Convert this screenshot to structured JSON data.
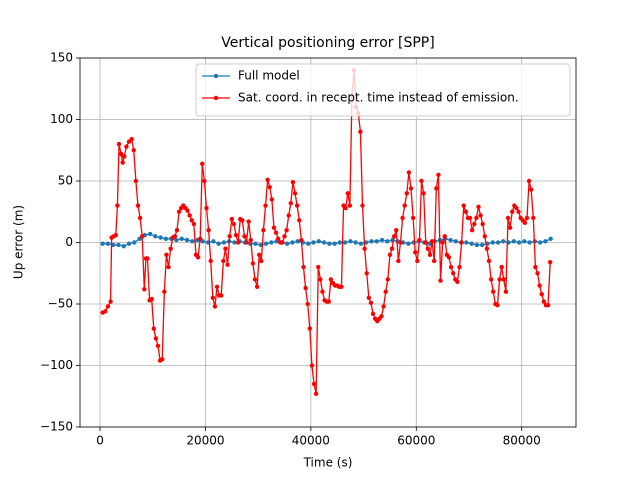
{
  "chart_data": {
    "type": "line",
    "title": "Vertical positioning error [SPP]",
    "x_label": "Time (s)",
    "y_label": "Up error (m)",
    "xlim": [
      -3800,
      90300
    ],
    "xticks": [
      0,
      20000,
      40000,
      60000,
      80000
    ],
    "ylim": [
      -150,
      150
    ],
    "yticks": [
      {
        "value": -150,
        "label": "−150"
      },
      {
        "value": -100,
        "label": "−100"
      },
      {
        "value": -50,
        "label": "−50"
      },
      0,
      50,
      100,
      150
    ],
    "grid": true,
    "legend": "upper-center",
    "series": [
      {
        "name": "Full model",
        "color": "#1f77b4",
        "x": [
          500,
          1500,
          2500,
          3500,
          4500,
          5500,
          6500,
          7500,
          8500,
          9500,
          10500,
          11500,
          12500,
          13500,
          14500,
          15500,
          16500,
          17500,
          18500,
          19500,
          20500,
          21500,
          22500,
          23500,
          24500,
          25500,
          26500,
          27500,
          28500,
          29500,
          30500,
          31500,
          32500,
          33500,
          34500,
          35500,
          36500,
          37500,
          38500,
          39500,
          40500,
          41500,
          42500,
          43500,
          44500,
          45500,
          46500,
          47500,
          48500,
          49500,
          50500,
          51500,
          52500,
          53500,
          54500,
          55500,
          56500,
          57500,
          58500,
          59500,
          60500,
          61500,
          62500,
          63500,
          64500,
          65500,
          66500,
          67500,
          68500,
          69500,
          70500,
          71500,
          72500,
          73500,
          74500,
          75500,
          76500,
          77500,
          78500,
          79500,
          80500,
          81500,
          82500,
          83500,
          84500,
          85500
        ],
        "values": [
          -1,
          -1,
          -2,
          -2,
          -3,
          -1,
          0,
          3,
          6,
          7,
          5,
          4,
          3,
          3,
          2,
          3,
          2,
          1,
          2,
          1,
          0,
          1,
          -1,
          0,
          1,
          0,
          1,
          0,
          -1,
          -1,
          -2,
          -1,
          0,
          1,
          0,
          -1,
          0,
          1,
          0,
          -1,
          0,
          1,
          0,
          -1,
          -1,
          0,
          0,
          1,
          0,
          -1,
          0,
          1,
          1,
          2,
          1,
          2,
          1,
          0,
          -1,
          0,
          1,
          0,
          -1,
          1,
          2,
          3,
          2,
          1,
          0,
          0,
          -1,
          -2,
          -2,
          -1,
          0,
          0,
          1,
          0,
          1,
          0,
          1,
          0,
          1,
          0,
          1,
          3
        ]
      },
      {
        "name": "Sat. coord. in recept. time instead of emission.",
        "color": "#ff0000",
        "x": [
          500,
          1000,
          1500,
          2000,
          2200,
          2600,
          3000,
          3300,
          3600,
          4000,
          4300,
          4600,
          5000,
          5500,
          6000,
          6400,
          6800,
          7200,
          7600,
          8000,
          8400,
          8700,
          9000,
          9400,
          9800,
          10200,
          10600,
          11000,
          11400,
          11800,
          12200,
          12600,
          13000,
          13400,
          13800,
          14200,
          14600,
          15000,
          15400,
          15800,
          16200,
          16600,
          17000,
          17400,
          17800,
          18200,
          18600,
          19000,
          19400,
          19800,
          20200,
          20600,
          21000,
          21400,
          21800,
          22200,
          22600,
          23000,
          23400,
          23800,
          24200,
          24600,
          25000,
          25400,
          25800,
          26200,
          26600,
          27000,
          27400,
          27800,
          28200,
          28600,
          29000,
          29400,
          29800,
          30200,
          30600,
          31000,
          31400,
          31800,
          32200,
          32600,
          33000,
          33400,
          33800,
          34200,
          34600,
          35000,
          35400,
          35800,
          36200,
          36600,
          37000,
          37400,
          37800,
          38200,
          38600,
          39000,
          39400,
          39800,
          40200,
          40600,
          41000,
          41400,
          41800,
          42200,
          42600,
          43000,
          43400,
          43800,
          44200,
          44600,
          45000,
          45400,
          45800,
          46200,
          46600,
          47000,
          47400,
          47800,
          48200,
          48600,
          49000,
          49400,
          49800,
          50200,
          50600,
          51000,
          51400,
          51800,
          52200,
          52600,
          53000,
          53400,
          53800,
          54200,
          54600,
          55000,
          55400,
          55800,
          56200,
          56600,
          57000,
          57400,
          57800,
          58200,
          58600,
          59000,
          59400,
          59800,
          60200,
          60600,
          61000,
          61400,
          61800,
          62200,
          62600,
          63000,
          63400,
          63800,
          64200,
          64600,
          65000,
          65400,
          65800,
          66200,
          66600,
          67000,
          67400,
          67800,
          68200,
          68600,
          69000,
          69400,
          69800,
          70200,
          70600,
          71000,
          71400,
          71800,
          72200,
          72600,
          73000,
          73400,
          73800,
          74200,
          74600,
          75000,
          75400,
          75800,
          76200,
          76600,
          77000,
          77400,
          77800,
          78200,
          78600,
          79000,
          79400,
          79800,
          80200,
          80600,
          81000,
          81400,
          81800,
          82200,
          82600,
          83000,
          83400,
          83800,
          84200,
          84600,
          85000,
          85400
        ],
        "values": [
          -57,
          -56,
          -52,
          -48,
          4,
          5,
          6,
          30,
          80,
          72,
          65,
          70,
          78,
          82,
          84,
          75,
          50,
          30,
          20,
          5,
          -38,
          -13,
          -13,
          -47,
          -46,
          -70,
          -78,
          -84,
          -96,
          -95,
          -40,
          -10,
          -20,
          -5,
          4,
          5,
          10,
          25,
          28,
          30,
          28,
          26,
          22,
          18,
          15,
          -10,
          -12,
          3,
          64,
          50,
          28,
          10,
          -15,
          -45,
          -52,
          -36,
          -43,
          -43,
          -15,
          -5,
          -18,
          5,
          19,
          15,
          6,
          0,
          19,
          18,
          5,
          0,
          17,
          2,
          -17,
          -30,
          -36,
          -10,
          -15,
          10,
          30,
          51,
          45,
          35,
          12,
          8,
          3,
          0,
          0,
          5,
          10,
          22,
          32,
          49,
          40,
          30,
          18,
          2,
          -20,
          -37,
          -50,
          -70,
          -100,
          -115,
          -123,
          -20,
          -30,
          -40,
          -47,
          -48,
          -48,
          -30,
          -33,
          -35,
          -35,
          -36,
          -36,
          30,
          28,
          40,
          30,
          120,
          140,
          110,
          105,
          90,
          30,
          -5,
          -25,
          -45,
          -49,
          -58,
          -62,
          -64,
          -62,
          -60,
          -52,
          -40,
          -30,
          -10,
          -5,
          5,
          10,
          -15,
          0,
          20,
          30,
          40,
          57,
          44,
          20,
          -8,
          -15,
          2,
          50,
          40,
          0,
          -5,
          -10,
          1,
          -15,
          44,
          55,
          -31,
          0,
          5,
          -10,
          -12,
          -20,
          -25,
          -30,
          -32,
          -20,
          0,
          30,
          25,
          20,
          20,
          10,
          15,
          20,
          29,
          22,
          15,
          5,
          -5,
          -15,
          -30,
          -40,
          -50,
          -51,
          -30,
          -20,
          -30,
          -40,
          20,
          12,
          25,
          30,
          28,
          25,
          20,
          18,
          16,
          20,
          50,
          43,
          20,
          -20,
          -25,
          -35,
          -42,
          -48,
          -51,
          -51,
          -16
        ]
      }
    ]
  }
}
